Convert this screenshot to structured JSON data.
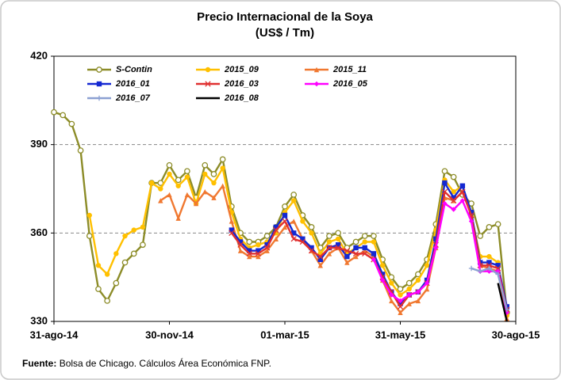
{
  "chart_data": {
    "type": "line",
    "title": "Precio Internacional de la Soya",
    "subtitle": "(US$ / Tm)",
    "footer_label": "Fuente:",
    "footer_text": "Bolsa de Chicago. Cálculos Área Económica FNP.",
    "categories": [
      "31-ago-14",
      null,
      null,
      null,
      null,
      null,
      null,
      null,
      null,
      null,
      null,
      null,
      null,
      "30-nov-14",
      null,
      null,
      null,
      null,
      null,
      null,
      null,
      null,
      null,
      null,
      null,
      null,
      "01-mar-15",
      null,
      null,
      null,
      null,
      null,
      null,
      null,
      null,
      null,
      null,
      null,
      null,
      "31-may-15",
      null,
      null,
      null,
      null,
      null,
      null,
      null,
      null,
      null,
      null,
      null,
      null,
      "30-ago-15"
    ],
    "ylim": [
      330,
      420
    ],
    "yticks": [
      330,
      360,
      390,
      420
    ],
    "grid": true,
    "series": [
      {
        "name": "S-Contin",
        "color": "#8c8c28",
        "marker": "circle-open",
        "values": [
          401,
          400,
          397,
          388,
          359,
          341,
          337,
          343,
          350,
          353,
          356,
          377,
          377,
          383,
          378,
          381,
          372,
          383,
          380,
          385,
          369,
          360,
          357,
          357,
          359,
          362,
          369,
          373,
          366,
          362,
          355,
          359,
          360,
          355,
          357,
          359,
          359,
          351,
          345,
          341,
          343,
          346,
          351,
          363,
          381,
          379,
          373,
          370,
          359,
          362,
          363,
          333,
          null
        ]
      },
      {
        "name": "2015_09",
        "color": "#ffc000",
        "marker": "circle",
        "values": [
          null,
          null,
          null,
          null,
          366,
          349,
          346,
          353,
          359,
          361,
          362,
          377,
          375,
          380,
          376,
          379,
          370,
          380,
          377,
          382,
          367,
          358,
          355,
          356,
          357,
          360,
          367,
          371,
          364,
          360,
          353,
          357,
          358,
          353,
          355,
          357,
          357,
          349,
          343,
          339,
          341,
          344,
          349,
          361,
          378,
          374,
          376,
          366,
          352,
          352,
          350,
          332,
          null
        ]
      },
      {
        "name": "2015_11",
        "color": "#f07830",
        "marker": "triangle",
        "values": [
          null,
          null,
          null,
          null,
          null,
          null,
          null,
          null,
          null,
          null,
          null,
          null,
          371,
          373,
          365,
          373,
          370,
          374,
          372,
          376,
          364,
          354,
          352,
          352,
          354,
          358,
          362,
          364,
          358,
          354,
          349,
          353,
          355,
          350,
          352,
          354,
          352,
          344,
          337,
          333,
          336,
          337,
          341,
          355,
          372,
          371,
          374,
          366,
          349,
          348,
          347,
          331,
          null
        ]
      },
      {
        "name": "2016_01",
        "color": "#1428d2",
        "marker": "square",
        "values": [
          null,
          null,
          null,
          null,
          null,
          null,
          null,
          null,
          null,
          null,
          null,
          null,
          null,
          null,
          null,
          null,
          null,
          null,
          null,
          null,
          361,
          357,
          354,
          354,
          356,
          362,
          366,
          360,
          358,
          355,
          351,
          355,
          356,
          352,
          355,
          355,
          353,
          346,
          340,
          336,
          339,
          340,
          344,
          358,
          377,
          372,
          376,
          367,
          350,
          350,
          349,
          335,
          null
        ]
      },
      {
        "name": "2016_03",
        "color": "#e03030",
        "marker": "x",
        "values": [
          null,
          null,
          null,
          null,
          null,
          null,
          null,
          null,
          null,
          null,
          null,
          null,
          null,
          null,
          null,
          null,
          null,
          null,
          null,
          null,
          360,
          356,
          353,
          353,
          355,
          361,
          364,
          358,
          357,
          354,
          352,
          355,
          355,
          354,
          353,
          353,
          351,
          345,
          340,
          335,
          339,
          340,
          343,
          356,
          374,
          371,
          374,
          366,
          349,
          349,
          348,
          334,
          null
        ]
      },
      {
        "name": "2016_05",
        "color": "#ff00ff",
        "marker": "diamond",
        "values": [
          null,
          null,
          null,
          null,
          null,
          null,
          null,
          null,
          null,
          null,
          null,
          null,
          null,
          null,
          null,
          null,
          null,
          null,
          null,
          null,
          null,
          null,
          null,
          null,
          null,
          null,
          null,
          null,
          null,
          null,
          null,
          null,
          null,
          null,
          null,
          null,
          351,
          344,
          339,
          337,
          339,
          340,
          343,
          355,
          370,
          368,
          371,
          364,
          347,
          347,
          347,
          333,
          null
        ]
      },
      {
        "name": "2016_07",
        "color": "#8ca0d2",
        "marker": "plus",
        "values": [
          null,
          null,
          null,
          null,
          null,
          null,
          null,
          null,
          null,
          null,
          null,
          null,
          null,
          null,
          null,
          null,
          null,
          null,
          null,
          null,
          null,
          null,
          null,
          null,
          null,
          null,
          null,
          null,
          null,
          null,
          null,
          null,
          null,
          null,
          null,
          null,
          null,
          null,
          null,
          null,
          null,
          null,
          null,
          null,
          null,
          null,
          null,
          348,
          347,
          348,
          346,
          334,
          null
        ]
      },
      {
        "name": "2016_08",
        "color": "#000000",
        "marker": "none",
        "values": [
          null,
          null,
          null,
          null,
          null,
          null,
          null,
          null,
          null,
          null,
          null,
          null,
          null,
          null,
          null,
          null,
          null,
          null,
          null,
          null,
          null,
          null,
          null,
          null,
          null,
          null,
          null,
          null,
          null,
          null,
          null,
          null,
          null,
          null,
          null,
          null,
          null,
          null,
          null,
          null,
          null,
          null,
          null,
          null,
          null,
          null,
          null,
          null,
          null,
          null,
          343,
          330,
          null
        ]
      }
    ]
  }
}
